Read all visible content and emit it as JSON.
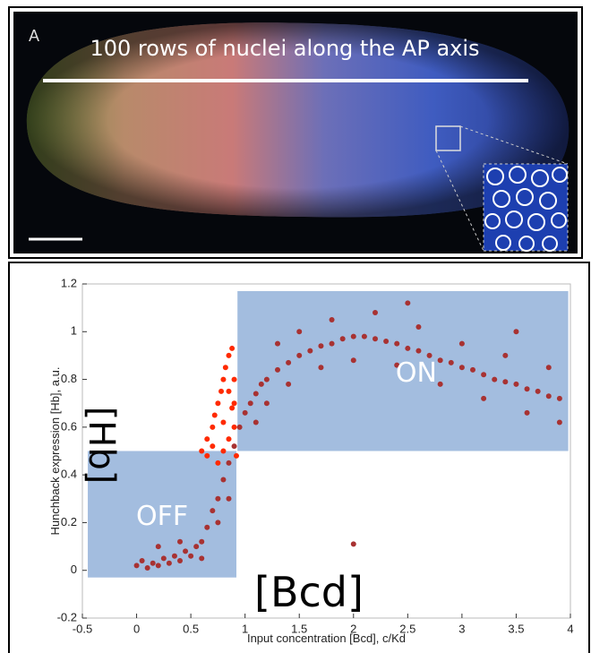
{
  "figure": {
    "panel_label": "A",
    "caption": "100 rows of nuclei along the AP axis"
  },
  "chart_data": {
    "type": "scatter",
    "xlabel": "Input concentration [Bcd], c/Kd",
    "ylabel": "Hunchback expression [Hb], a.u.",
    "xlim": [
      -0.5,
      4
    ],
    "ylim": [
      -0.2,
      1.2
    ],
    "xticks": [
      -0.5,
      0,
      0.5,
      1,
      1.5,
      2,
      2.5,
      3,
      3.5,
      4
    ],
    "yticks": [
      -0.2,
      0,
      0.2,
      0.4,
      0.6,
      0.8,
      1,
      1.2
    ],
    "regions": [
      {
        "label": "OFF",
        "x": [
          -0.45,
          0.92
        ],
        "y": [
          -0.03,
          0.5
        ],
        "color": "#a3bddf"
      },
      {
        "label": "ON",
        "x": [
          0.93,
          3.98
        ],
        "y": [
          0.5,
          1.17
        ],
        "color": "#a3bddf"
      }
    ],
    "x_annotation": "[Bcd]",
    "y_annotation": "[Hb]",
    "series": [
      {
        "color": "#a83232",
        "x": [
          0.0,
          0.05,
          0.1,
          0.15,
          0.2,
          0.25,
          0.3,
          0.35,
          0.4,
          0.45,
          0.5,
          0.55,
          0.6,
          0.65,
          0.7,
          0.75,
          0.8,
          0.85,
          0.9,
          0.95,
          1.0,
          1.05,
          1.1,
          1.15,
          1.2,
          1.3,
          1.4,
          1.5,
          1.6,
          1.7,
          1.8,
          1.9,
          2.0,
          2.1,
          2.2,
          2.3,
          2.4,
          2.5,
          2.6,
          2.7,
          2.8,
          2.9,
          3.0,
          3.1,
          3.2,
          3.3,
          3.4,
          3.5,
          3.6,
          3.7,
          3.8,
          3.9,
          1.2,
          1.4,
          1.5,
          1.7,
          1.8,
          2.0,
          2.2,
          2.4,
          2.6,
          2.8,
          3.0,
          3.2,
          3.4,
          3.6,
          3.8,
          3.9,
          0.2,
          0.4,
          0.6,
          0.75,
          0.85,
          2.0,
          1.1,
          1.3,
          2.5,
          3.5
        ],
        "y": [
          0.02,
          0.04,
          0.01,
          0.03,
          0.02,
          0.05,
          0.03,
          0.06,
          0.04,
          0.08,
          0.06,
          0.1,
          0.12,
          0.18,
          0.25,
          0.3,
          0.38,
          0.45,
          0.52,
          0.6,
          0.66,
          0.7,
          0.74,
          0.78,
          0.8,
          0.84,
          0.87,
          0.9,
          0.92,
          0.94,
          0.95,
          0.97,
          0.98,
          0.98,
          0.97,
          0.96,
          0.95,
          0.93,
          0.92,
          0.9,
          0.88,
          0.87,
          0.85,
          0.84,
          0.82,
          0.8,
          0.79,
          0.78,
          0.76,
          0.75,
          0.73,
          0.72,
          0.7,
          0.78,
          1.0,
          0.85,
          1.05,
          0.88,
          1.08,
          0.86,
          1.02,
          0.78,
          0.95,
          0.72,
          0.9,
          0.66,
          0.85,
          0.62,
          0.1,
          0.12,
          0.05,
          0.2,
          0.3,
          0.11,
          0.62,
          0.95,
          1.12,
          1.0
        ]
      },
      {
        "color": "#ff2a00",
        "x": [
          0.6,
          0.65,
          0.7,
          0.72,
          0.75,
          0.78,
          0.8,
          0.82,
          0.85,
          0.88,
          0.9,
          0.7,
          0.8,
          0.85,
          0.9,
          0.75,
          0.8,
          0.9,
          0.92,
          0.88,
          0.65,
          0.85
        ],
        "y": [
          0.5,
          0.55,
          0.6,
          0.65,
          0.7,
          0.75,
          0.8,
          0.85,
          0.9,
          0.93,
          0.7,
          0.52,
          0.62,
          0.55,
          0.6,
          0.45,
          0.5,
          0.8,
          0.48,
          0.68,
          0.48,
          0.75
        ]
      }
    ]
  }
}
